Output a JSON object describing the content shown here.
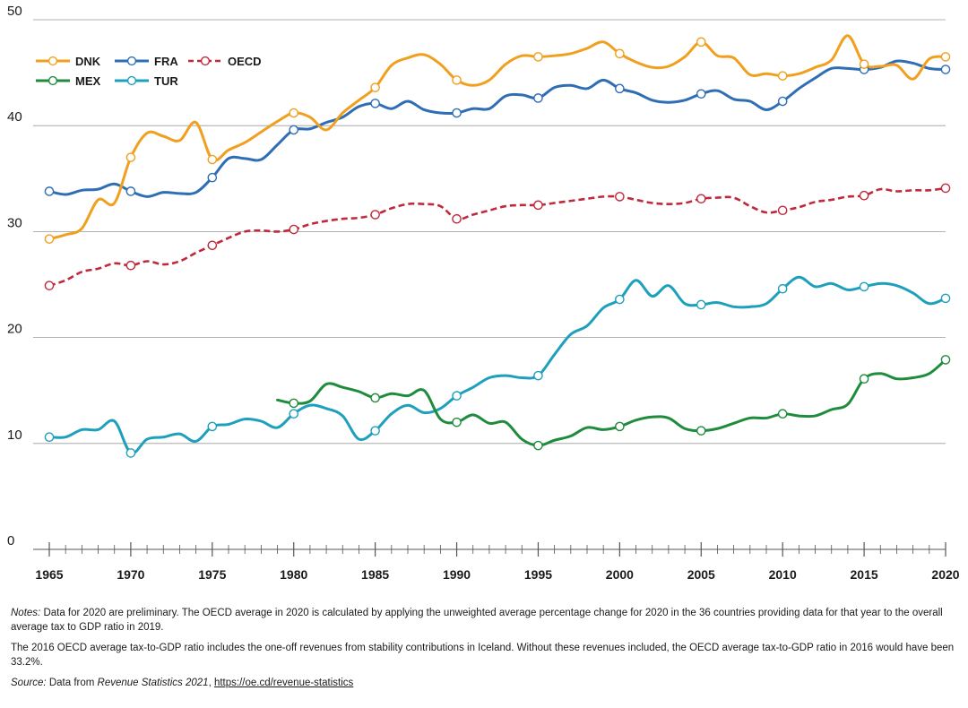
{
  "chart_data": {
    "type": "line",
    "title": "",
    "xlabel": "",
    "ylabel": "",
    "xlim": [
      1965,
      2020
    ],
    "ylim": [
      0,
      50
    ],
    "yticks": [
      0,
      10,
      20,
      30,
      40,
      50
    ],
    "xticks_labeled": [
      1965,
      1970,
      1975,
      1980,
      1985,
      1990,
      1995,
      2000,
      2005,
      2010,
      2015,
      2020
    ],
    "grid": "horizontal",
    "legend_position": "top-left",
    "series": [
      {
        "name": "DNK",
        "color": "#f0a01e",
        "dash": "solid",
        "x": [
          1965,
          1966,
          1967,
          1968,
          1969,
          1970,
          1971,
          1972,
          1973,
          1974,
          1975,
          1976,
          1977,
          1978,
          1979,
          1980,
          1981,
          1982,
          1983,
          1984,
          1985,
          1986,
          1987,
          1988,
          1989,
          1990,
          1991,
          1992,
          1993,
          1994,
          1995,
          1996,
          1997,
          1998,
          1999,
          2000,
          2001,
          2002,
          2003,
          2004,
          2005,
          2006,
          2007,
          2008,
          2009,
          2010,
          2011,
          2012,
          2013,
          2014,
          2015,
          2016,
          2017,
          2018,
          2019,
          2020
        ],
        "y": [
          29.3,
          29.7,
          30.3,
          33.0,
          32.7,
          37.0,
          39.3,
          39.0,
          38.6,
          40.3,
          36.8,
          37.7,
          38.4,
          39.4,
          40.4,
          41.2,
          40.8,
          39.6,
          41.2,
          42.4,
          43.6,
          45.7,
          46.4,
          46.7,
          45.8,
          44.3,
          43.8,
          44.3,
          45.8,
          46.6,
          46.5,
          46.6,
          46.8,
          47.3,
          47.9,
          46.8,
          46.0,
          45.5,
          45.6,
          46.5,
          47.9,
          46.6,
          46.4,
          44.8,
          44.9,
          44.7,
          44.9,
          45.5,
          46.2,
          48.5,
          45.8,
          45.6,
          45.7,
          44.4,
          46.3,
          46.5
        ],
        "markers": [
          1965,
          1970,
          1975,
          1980,
          1985,
          1990,
          1995,
          2000,
          2005,
          2010,
          2015,
          2020
        ]
      },
      {
        "name": "FRA",
        "color": "#2f6db5",
        "dash": "solid",
        "x": [
          1965,
          1966,
          1967,
          1968,
          1969,
          1970,
          1971,
          1972,
          1973,
          1974,
          1975,
          1976,
          1977,
          1978,
          1979,
          1980,
          1981,
          1982,
          1983,
          1984,
          1985,
          1986,
          1987,
          1988,
          1989,
          1990,
          1991,
          1992,
          1993,
          1994,
          1995,
          1996,
          1997,
          1998,
          1999,
          2000,
          2001,
          2002,
          2003,
          2004,
          2005,
          2006,
          2007,
          2008,
          2009,
          2010,
          2011,
          2012,
          2013,
          2014,
          2015,
          2016,
          2017,
          2018,
          2019,
          2020
        ],
        "y": [
          33.8,
          33.5,
          33.9,
          34.0,
          34.5,
          33.8,
          33.3,
          33.7,
          33.6,
          33.7,
          35.1,
          36.9,
          36.9,
          36.8,
          38.2,
          39.6,
          39.7,
          40.3,
          40.8,
          41.8,
          42.1,
          41.6,
          42.3,
          41.5,
          41.2,
          41.2,
          41.6,
          41.6,
          42.8,
          42.9,
          42.6,
          43.6,
          43.8,
          43.5,
          44.3,
          43.5,
          43.1,
          42.4,
          42.2,
          42.4,
          43.0,
          43.3,
          42.5,
          42.3,
          41.5,
          42.3,
          43.5,
          44.5,
          45.4,
          45.4,
          45.3,
          45.5,
          46.1,
          45.9,
          45.4,
          45.3
        ],
        "markers": [
          1965,
          1970,
          1975,
          1980,
          1985,
          1990,
          1995,
          2000,
          2005,
          2010,
          2015,
          2020
        ]
      },
      {
        "name": "OECD",
        "color": "#c0283c",
        "dash": "dashed",
        "x": [
          1965,
          1966,
          1967,
          1968,
          1969,
          1970,
          1971,
          1972,
          1973,
          1974,
          1975,
          1976,
          1977,
          1978,
          1979,
          1980,
          1981,
          1982,
          1983,
          1984,
          1985,
          1986,
          1987,
          1988,
          1989,
          1990,
          1991,
          1992,
          1993,
          1994,
          1995,
          1996,
          1997,
          1998,
          1999,
          2000,
          2001,
          2002,
          2003,
          2004,
          2005,
          2006,
          2007,
          2008,
          2009,
          2010,
          2011,
          2012,
          2013,
          2014,
          2015,
          2016,
          2017,
          2018,
          2019,
          2020
        ],
        "y": [
          24.9,
          25.4,
          26.2,
          26.5,
          27.0,
          26.8,
          27.2,
          26.9,
          27.2,
          28.0,
          28.7,
          29.4,
          30.0,
          30.1,
          30.0,
          30.2,
          30.7,
          31.0,
          31.2,
          31.3,
          31.6,
          32.2,
          32.6,
          32.6,
          32.4,
          31.2,
          31.6,
          32.0,
          32.4,
          32.5,
          32.5,
          32.7,
          32.9,
          33.1,
          33.3,
          33.3,
          33.0,
          32.7,
          32.6,
          32.7,
          33.1,
          33.2,
          33.2,
          32.4,
          31.8,
          32.0,
          32.3,
          32.8,
          33.0,
          33.3,
          33.4,
          34.0,
          33.8,
          33.9,
          33.9,
          34.1
        ],
        "markers": [
          1965,
          1970,
          1975,
          1980,
          1985,
          1990,
          1995,
          2000,
          2005,
          2010,
          2015,
          2020
        ]
      },
      {
        "name": "MEX",
        "color": "#1e8c3c",
        "dash": "solid",
        "x": [
          1979,
          1980,
          1981,
          1982,
          1983,
          1984,
          1985,
          1986,
          1987,
          1988,
          1989,
          1990,
          1991,
          1992,
          1993,
          1994,
          1995,
          1996,
          1997,
          1998,
          1999,
          2000,
          2001,
          2002,
          2003,
          2004,
          2005,
          2006,
          2007,
          2008,
          2009,
          2010,
          2011,
          2012,
          2013,
          2014,
          2015,
          2016,
          2017,
          2018,
          2019,
          2020
        ],
        "y": [
          14.1,
          13.8,
          14.0,
          15.6,
          15.3,
          14.9,
          14.3,
          14.7,
          14.5,
          15.0,
          12.3,
          12.0,
          12.7,
          11.9,
          12.0,
          10.4,
          9.8,
          10.3,
          10.7,
          11.5,
          11.3,
          11.6,
          12.2,
          12.5,
          12.4,
          11.4,
          11.2,
          11.4,
          11.9,
          12.4,
          12.4,
          12.8,
          12.6,
          12.6,
          13.2,
          13.7,
          16.1,
          16.6,
          16.1,
          16.2,
          16.6,
          17.9
        ],
        "markers": [
          1980,
          1985,
          1990,
          1995,
          2000,
          2005,
          2010,
          2015,
          2020
        ]
      },
      {
        "name": "TUR",
        "color": "#1ea0bc",
        "dash": "solid",
        "x": [
          1965,
          1966,
          1967,
          1968,
          1969,
          1970,
          1971,
          1972,
          1973,
          1974,
          1975,
          1976,
          1977,
          1978,
          1979,
          1980,
          1981,
          1982,
          1983,
          1984,
          1985,
          1986,
          1987,
          1988,
          1989,
          1990,
          1991,
          1992,
          1993,
          1994,
          1995,
          1996,
          1997,
          1998,
          1999,
          2000,
          2001,
          2002,
          2003,
          2004,
          2005,
          2006,
          2007,
          2008,
          2009,
          2010,
          2011,
          2012,
          2013,
          2014,
          2015,
          2016,
          2017,
          2018,
          2019,
          2020
        ],
        "y": [
          10.6,
          10.6,
          11.3,
          11.3,
          12.1,
          9.1,
          10.4,
          10.6,
          10.9,
          10.2,
          11.6,
          11.8,
          12.3,
          12.1,
          11.5,
          12.8,
          13.6,
          13.3,
          12.6,
          10.4,
          11.2,
          12.8,
          13.6,
          12.9,
          13.3,
          14.5,
          15.3,
          16.2,
          16.4,
          16.2,
          16.4,
          18.4,
          20.3,
          21.1,
          22.8,
          23.6,
          25.4,
          23.9,
          24.9,
          23.2,
          23.1,
          23.3,
          22.9,
          22.9,
          23.2,
          24.6,
          25.7,
          24.8,
          25.1,
          24.5,
          24.8,
          25.1,
          24.9,
          24.2,
          23.2,
          23.7
        ],
        "markers": [
          1965,
          1970,
          1975,
          1980,
          1985,
          1990,
          1995,
          2000,
          2005,
          2010,
          2015,
          2020
        ]
      }
    ]
  },
  "notes": {
    "notes_label": "Notes:",
    "notes_text": " Data for 2020 are preliminary. The OECD average in 2020 is calculated by applying the unweighted average percentage change for 2020 in the 36 countries providing data for that year to the overall average tax to GDP ratio in 2019.",
    "note2": "The 2016 OECD average tax-to-GDP ratio includes the one-off revenues from stability contributions in Iceland. Without these revenues included, the OECD average tax-to-GDP ratio in 2016 would have been 33.2%.",
    "source_label": "Source:",
    "source_prefix": " Data from ",
    "source_title": "Revenue Statistics 2021",
    "source_sep": ", ",
    "source_link": "https://oe.cd/revenue-statistics"
  }
}
